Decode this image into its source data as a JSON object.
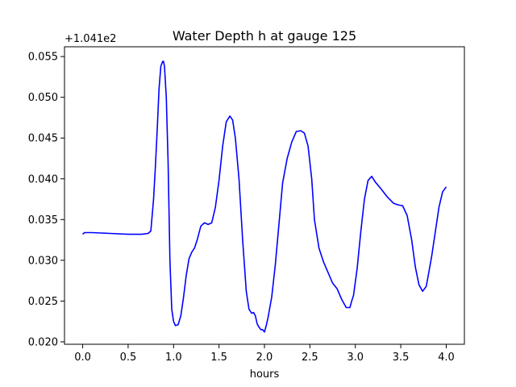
{
  "chart_data": {
    "type": "line",
    "title": "Water Depth h at gauge 125",
    "xlabel": "hours",
    "ylabel": "",
    "y_offset_label": "+1.041e2",
    "xlim": [
      -0.2,
      4.2
    ],
    "ylim": [
      0.0197,
      0.0562
    ],
    "x_ticks": [
      0.0,
      0.5,
      1.0,
      1.5,
      2.0,
      2.5,
      3.0,
      3.5,
      4.0
    ],
    "x_tick_labels": [
      "0.0",
      "0.5",
      "1.0",
      "1.5",
      "2.0",
      "2.5",
      "3.0",
      "3.5",
      "4.0"
    ],
    "y_ticks": [
      0.02,
      0.025,
      0.03,
      0.035,
      0.04,
      0.045,
      0.05,
      0.055
    ],
    "y_tick_labels": [
      "0.020",
      "0.025",
      "0.030",
      "0.035",
      "0.040",
      "0.045",
      "0.050",
      "0.055"
    ],
    "grid": false,
    "series": [
      {
        "color": "#0000ff",
        "x": [
          0.0,
          0.02,
          0.1,
          0.3,
          0.5,
          0.65,
          0.72,
          0.75,
          0.78,
          0.8,
          0.82,
          0.84,
          0.86,
          0.88,
          0.89,
          0.9,
          0.92,
          0.94,
          0.96,
          0.98,
          1.0,
          1.02,
          1.05,
          1.08,
          1.11,
          1.14,
          1.17,
          1.2,
          1.23,
          1.26,
          1.3,
          1.34,
          1.38,
          1.42,
          1.46,
          1.5,
          1.54,
          1.58,
          1.62,
          1.65,
          1.68,
          1.72,
          1.76,
          1.8,
          1.83,
          1.86,
          1.88,
          1.9,
          1.92,
          1.94,
          1.96,
          1.98,
          2.0,
          2.02,
          2.04,
          2.08,
          2.12,
          2.16,
          2.2,
          2.25,
          2.3,
          2.35,
          2.4,
          2.44,
          2.48,
          2.52,
          2.55,
          2.6,
          2.65,
          2.7,
          2.75,
          2.8,
          2.85,
          2.9,
          2.94,
          2.96,
          2.98,
          3.02,
          3.06,
          3.1,
          3.14,
          3.18,
          3.22,
          3.28,
          3.35,
          3.42,
          3.47,
          3.52,
          3.57,
          3.62,
          3.66,
          3.7,
          3.74,
          3.78,
          3.8,
          3.84,
          3.88,
          3.92,
          3.96,
          4.0
        ],
        "values": [
          0.0332,
          0.0334,
          0.0334,
          0.0333,
          0.0332,
          0.0332,
          0.0333,
          0.0336,
          0.0375,
          0.0415,
          0.046,
          0.051,
          0.0538,
          0.0544,
          0.0544,
          0.0538,
          0.05,
          0.042,
          0.03,
          0.024,
          0.0225,
          0.022,
          0.0221,
          0.0232,
          0.0255,
          0.0282,
          0.0302,
          0.031,
          0.0315,
          0.0325,
          0.0342,
          0.0346,
          0.0344,
          0.0346,
          0.0365,
          0.0398,
          0.044,
          0.047,
          0.0477,
          0.0472,
          0.045,
          0.04,
          0.0325,
          0.0262,
          0.024,
          0.0235,
          0.0236,
          0.0232,
          0.0222,
          0.0218,
          0.0215,
          0.0215,
          0.0212,
          0.022,
          0.023,
          0.0255,
          0.0295,
          0.0345,
          0.0395,
          0.0425,
          0.0445,
          0.0458,
          0.0459,
          0.0456,
          0.044,
          0.04,
          0.035,
          0.0315,
          0.0298,
          0.0285,
          0.0272,
          0.0265,
          0.0252,
          0.0242,
          0.0242,
          0.025,
          0.0257,
          0.029,
          0.0335,
          0.0375,
          0.0398,
          0.0403,
          0.0396,
          0.0388,
          0.0378,
          0.037,
          0.0368,
          0.0367,
          0.0355,
          0.0325,
          0.0292,
          0.027,
          0.0262,
          0.0268,
          0.028,
          0.0305,
          0.0335,
          0.0365,
          0.0384,
          0.039
        ]
      }
    ]
  }
}
